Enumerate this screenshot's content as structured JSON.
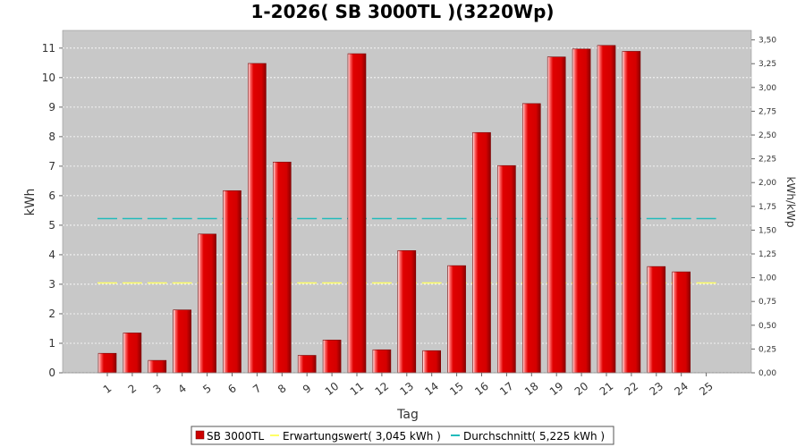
{
  "chart_data": {
    "type": "bar",
    "title": "1-2026( SB 3000TL )(3220Wp)",
    "xlabel": "Tag",
    "ylabel": "kWh",
    "ylabel_right": "kWh/kWp",
    "categories": [
      "1",
      "2",
      "3",
      "4",
      "5",
      "6",
      "7",
      "8",
      "9",
      "10",
      "11",
      "12",
      "13",
      "14",
      "15",
      "16",
      "17",
      "18",
      "19",
      "20",
      "21",
      "22",
      "23",
      "24",
      "25"
    ],
    "series": [
      {
        "name": "SB 3000TL",
        "type": "bar",
        "values": [
          0.66,
          1.35,
          0.42,
          2.13,
          4.7,
          6.17,
          10.48,
          7.14,
          0.59,
          1.11,
          10.81,
          0.78,
          4.14,
          0.75,
          3.63,
          8.14,
          7.02,
          9.12,
          10.7,
          10.97,
          11.09,
          10.89,
          3.6,
          3.42,
          0
        ]
      },
      {
        "name": "Erwartungswert( 3,045 kWh )",
        "type": "line",
        "value": 3.045
      },
      {
        "name": "Durchschnitt( 5,225 kWh )",
        "type": "line",
        "value": 5.225
      }
    ],
    "ylim": [
      0,
      11.6
    ],
    "yticks": [
      0,
      1,
      2,
      3,
      4,
      5,
      6,
      7,
      8,
      9,
      10,
      11
    ],
    "ylim_right": [
      0,
      3.6
    ],
    "yticks_right": [
      "0,00",
      "0,25",
      "0,50",
      "0,75",
      "1,00",
      "1,25",
      "1,50",
      "1,75",
      "2,00",
      "2,25",
      "2,50",
      "2,75",
      "3,00",
      "3,25",
      "3,50"
    ],
    "grid": true,
    "legend_position": "bottom",
    "colors": {
      "bar": "#dd0000",
      "bar_dark": "#8a0000",
      "bar_light": "#ff5a5a",
      "expected_line": "#ffff66",
      "average_line": "#22bbbb",
      "plot_bg": "#c8c8c8",
      "grid": "#ffffff"
    }
  }
}
